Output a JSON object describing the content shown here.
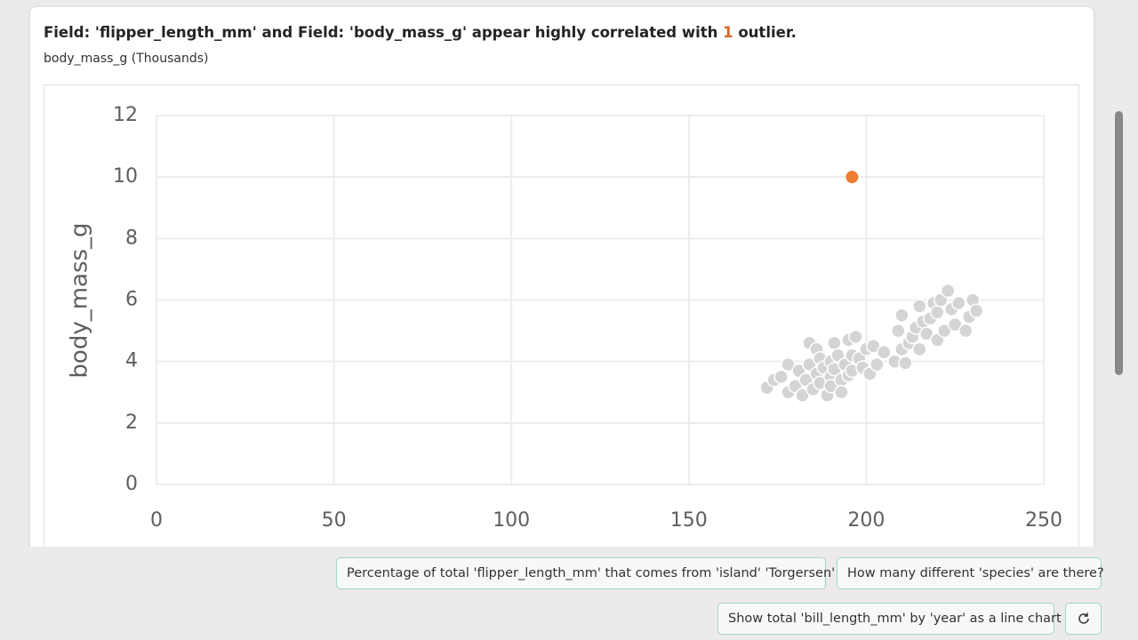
{
  "card": {
    "title_before": "Field: 'flipper_length_mm' and Field: 'body_mass_g' appear highly correlated with",
    "outlier_count": 1,
    "title_after": "outlier.",
    "subtitle": "body_mass_g (Thousands)"
  },
  "chart_data": {
    "type": "scatter",
    "y_label": "body_mass_g",
    "xlim": [
      0,
      250
    ],
    "xticks": [
      0,
      50,
      100,
      150,
      200,
      250
    ],
    "ylim": [
      0,
      12
    ],
    "yticks": [
      0,
      2,
      4,
      6,
      8,
      10,
      12
    ],
    "grid": true,
    "series": [
      {
        "color": "#d4d4d4",
        "x": [
          172,
          174,
          176,
          178,
          178,
          180,
          181,
          182,
          183,
          184,
          184,
          185,
          186,
          186,
          187,
          187,
          188,
          189,
          190,
          190,
          190,
          191,
          191,
          192,
          193,
          193,
          194,
          195,
          195,
          196,
          196,
          197,
          198,
          199,
          200,
          201,
          202,
          203,
          205,
          208,
          209,
          210,
          210,
          211,
          212,
          213,
          214,
          215,
          215,
          216,
          217,
          218,
          219,
          220,
          220,
          221,
          222,
          223,
          224,
          225,
          226,
          228,
          229,
          230,
          231
        ],
        "values": [
          3.15,
          3.4,
          3.5,
          3.9,
          3.0,
          3.2,
          3.7,
          2.9,
          3.4,
          4.6,
          3.9,
          3.1,
          4.4,
          3.6,
          3.3,
          4.1,
          3.8,
          2.9,
          3.5,
          4.0,
          3.2,
          4.6,
          3.75,
          4.2,
          3.4,
          3.0,
          3.9,
          4.7,
          3.55,
          4.2,
          3.7,
          4.8,
          4.1,
          3.8,
          4.4,
          3.6,
          4.5,
          3.9,
          4.3,
          4.0,
          5.0,
          4.4,
          5.5,
          3.95,
          4.6,
          4.8,
          5.1,
          4.4,
          5.8,
          5.3,
          4.9,
          5.4,
          5.9,
          4.7,
          5.6,
          6.0,
          5.0,
          6.3,
          5.7,
          5.2,
          5.9,
          5.0,
          5.45,
          6.0,
          5.65
        ]
      },
      {
        "color": "#ed7d31",
        "x": [
          196
        ],
        "values": [
          10
        ]
      }
    ]
  },
  "suggestions": [
    "Percentage of total 'flipper_length_mm' that comes from 'island' 'Torgersen'",
    "How many different 'species' are there?",
    "Show total 'bill_length_mm' by 'year' as a line chart"
  ]
}
